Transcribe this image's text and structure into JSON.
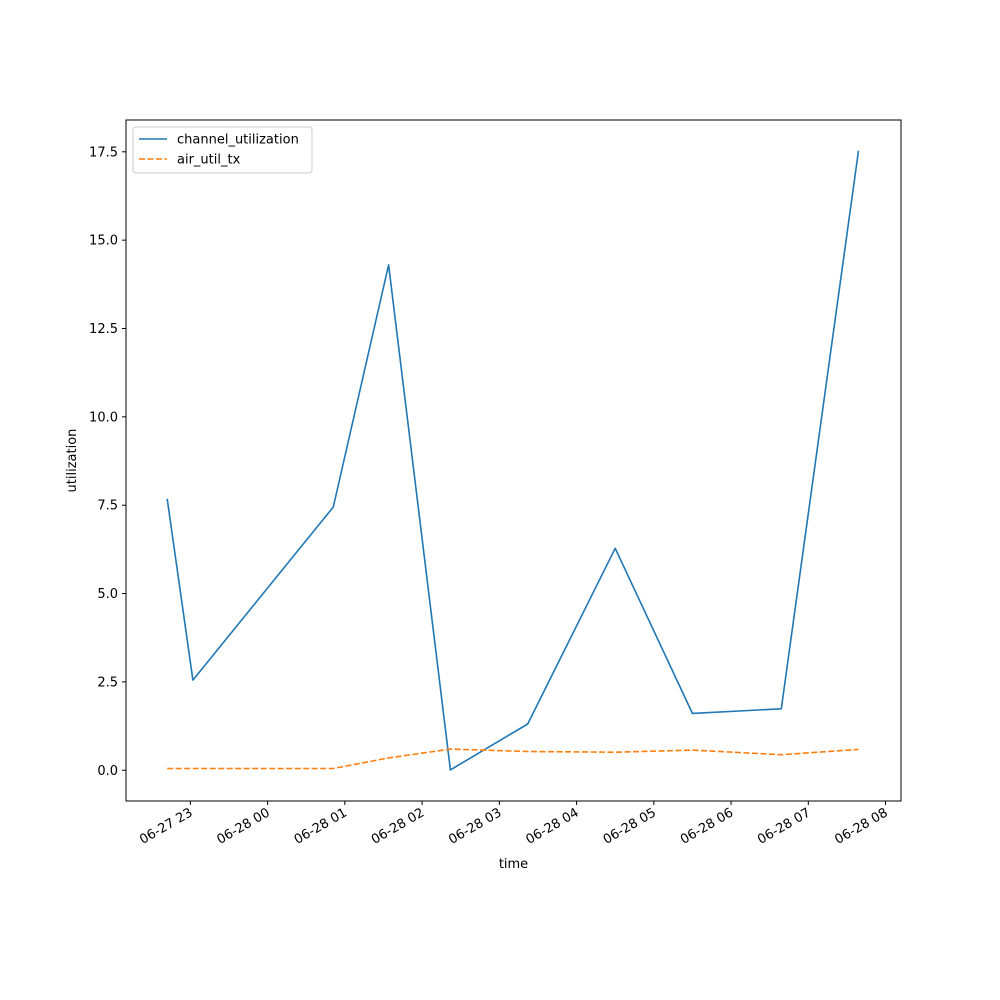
{
  "chart_data": {
    "type": "line",
    "title": "",
    "xlabel": "time",
    "ylabel": "utilization",
    "x": [
      "2025-06-27 22:42",
      "2025-06-27 23:02",
      "2025-06-28 00:51",
      "2025-06-28 01:34",
      "2025-06-28 02:22",
      "2025-06-28 03:22",
      "2025-06-28 04:30",
      "2025-06-28 05:30",
      "2025-06-28 06:39",
      "2025-06-28 07:39"
    ],
    "series": [
      {
        "name": "channel_utilization",
        "color": "#1f77b4",
        "style": "solid",
        "values": [
          7.68,
          2.55,
          7.45,
          14.3,
          0.01,
          1.31,
          6.28,
          1.61,
          1.74,
          17.53
        ]
      },
      {
        "name": "air_util_tx",
        "color": "#ff7f0e",
        "style": "dashed",
        "values": [
          0.05,
          0.05,
          0.05,
          0.35,
          0.6,
          0.53,
          0.51,
          0.57,
          0.44,
          0.59
        ]
      }
    ],
    "xlim": [
      "2025-06-27 22:10",
      "2025-06-28 08:12"
    ],
    "ylim": [
      -0.87,
      18.4
    ],
    "yticks": [
      0.0,
      2.5,
      5.0,
      7.5,
      10.0,
      12.5,
      15.0,
      17.5
    ],
    "ytick_labels": [
      "0.0",
      "2.5",
      "5.0",
      "7.5",
      "10.0",
      "12.5",
      "15.0",
      "17.5"
    ],
    "xticks": [
      "2025-06-27 23:00",
      "2025-06-28 00:00",
      "2025-06-28 01:00",
      "2025-06-28 02:00",
      "2025-06-28 03:00",
      "2025-06-28 04:00",
      "2025-06-28 05:00",
      "2025-06-28 06:00",
      "2025-06-28 07:00",
      "2025-06-28 08:00"
    ],
    "xtick_labels": [
      "06-27 23",
      "06-28 00",
      "06-28 01",
      "06-28 02",
      "06-28 03",
      "06-28 04",
      "06-28 05",
      "06-28 06",
      "06-28 07",
      "06-28 08"
    ],
    "grid": false,
    "legend": "upper-left"
  }
}
